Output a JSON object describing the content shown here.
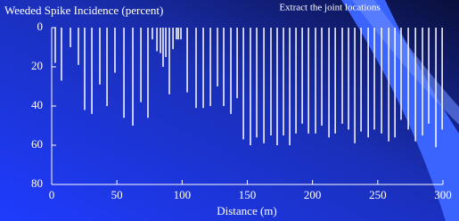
{
  "chart_data": {
    "type": "bar",
    "title": "Weeded Spike Incidence (percent)",
    "annotation": "Extract the joint locations",
    "xlabel": "Distance (m)",
    "color": "#ffffff",
    "inverted_y": true,
    "x": [
      2.7,
      7.5,
      14.4,
      20.5,
      25.3,
      30.8,
      36.9,
      42.4,
      48.5,
      55.4,
      62.2,
      68.4,
      73.8,
      77.2,
      80.7,
      83.4,
      85.4,
      87.5,
      90.2,
      93,
      95.7,
      97.1,
      99.1,
      103.9,
      110.7,
      116.2,
      121.7,
      127.1,
      131.9,
      137.4,
      142.2,
      147,
      152.4,
      157.2,
      162.7,
      168.1,
      172.9,
      177.7,
      182.5,
      187.3,
      192.1,
      196.9,
      202.3,
      207.1,
      212.6,
      217.4,
      222.8,
      227.6,
      232.4,
      237.2,
      242.7,
      247.4,
      252.9,
      258.4,
      263.2,
      267.9,
      273.4,
      278.9,
      284.3,
      289.1,
      294.6,
      299.4
    ],
    "values": [
      18,
      27,
      10,
      19,
      42,
      44,
      29,
      40,
      23,
      46,
      50,
      38,
      46,
      6,
      12,
      13,
      20,
      15,
      34,
      11,
      6,
      6,
      6,
      33,
      41,
      41,
      40,
      30,
      40,
      44,
      36,
      57,
      60,
      56,
      59,
      55,
      60,
      55,
      60,
      54,
      49,
      54,
      54,
      50,
      56,
      54,
      49,
      52,
      59,
      53,
      56,
      52,
      54,
      58,
      56,
      47,
      52,
      58,
      55,
      49,
      61,
      52
    ],
    "xlim": [
      0,
      300
    ],
    "xticks": [
      0,
      50,
      100,
      150,
      200,
      250,
      300
    ],
    "ylim": [
      0,
      80
    ],
    "yticks": [
      0,
      20,
      40,
      60,
      80
    ]
  }
}
